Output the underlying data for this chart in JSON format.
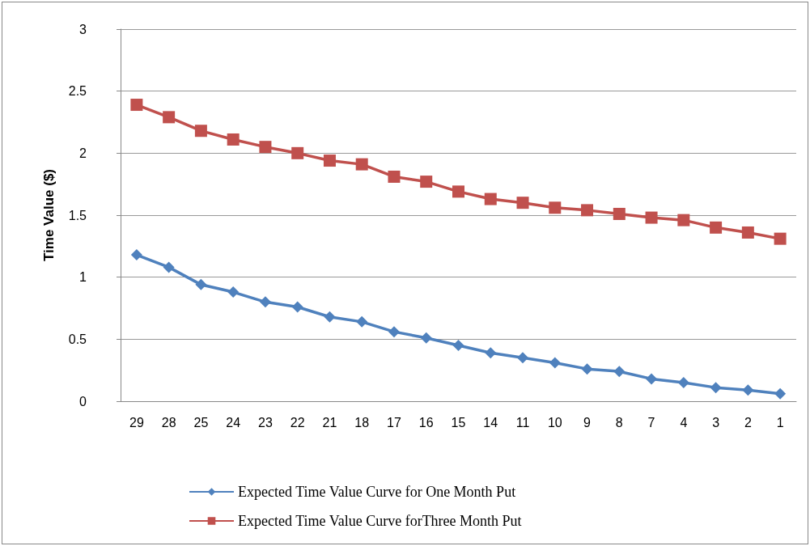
{
  "chart_data": {
    "type": "line",
    "ylabel": "Time Value ($)",
    "categories": [
      "29",
      "28",
      "25",
      "24",
      "23",
      "22",
      "21",
      "18",
      "17",
      "16",
      "15",
      "14",
      "11",
      "10",
      "9",
      "8",
      "7",
      "4",
      "3",
      "2",
      "1"
    ],
    "series": [
      {
        "name": "Expected Time Value Curve for One Month Put",
        "color": "#4f81bd",
        "marker": "diamond",
        "values": [
          1.18,
          1.08,
          0.94,
          0.88,
          0.8,
          0.76,
          0.68,
          0.64,
          0.56,
          0.51,
          0.45,
          0.39,
          0.35,
          0.31,
          0.26,
          0.24,
          0.18,
          0.15,
          0.11,
          0.09,
          0.06
        ]
      },
      {
        "name": "Expected Time Value Curve forThree Month Put",
        "color": "#c0504d",
        "marker": "square",
        "values": [
          2.39,
          2.29,
          2.18,
          2.11,
          2.05,
          2.0,
          1.94,
          1.91,
          1.81,
          1.77,
          1.69,
          1.63,
          1.6,
          1.56,
          1.54,
          1.51,
          1.48,
          1.46,
          1.4,
          1.36,
          1.31
        ]
      }
    ],
    "ylim": [
      0,
      3
    ],
    "yticks": [
      0,
      0.5,
      1,
      1.5,
      2,
      2.5,
      3
    ],
    "grid": "y",
    "legend": "bottom",
    "line_style": "solid"
  }
}
